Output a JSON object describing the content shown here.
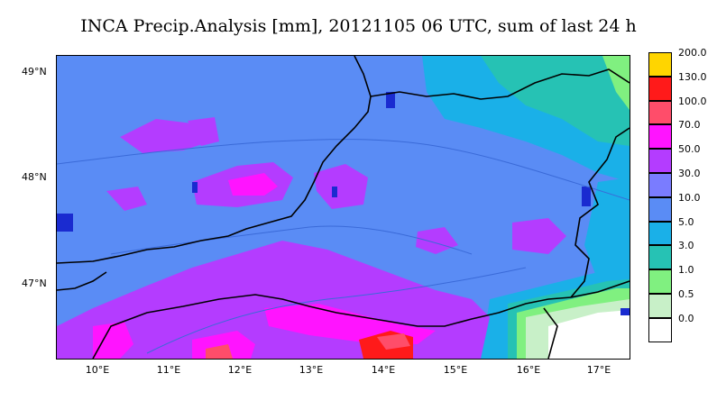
{
  "title": "INCA Precip.Analysis [mm], 20121105 06 UTC, sum of last 24 h",
  "latitude_labels": [
    "49°N",
    "48°N",
    "47°N"
  ],
  "longitude_labels": [
    "10°E",
    "11°E",
    "12°E",
    "13°E",
    "14°E",
    "15°E",
    "16°E",
    "17°E"
  ],
  "legend": {
    "levels": [
      {
        "label": "200.0",
        "color": "#ffd500"
      },
      {
        "label": "130.0",
        "color": "#ff1a1a"
      },
      {
        "label": "100.0",
        "color": "#ff4d6a"
      },
      {
        "label": "70.0",
        "color": "#ff14ff"
      },
      {
        "label": "50.0",
        "color": "#b43cff"
      },
      {
        "label": "30.0",
        "color": "#7a7cff"
      },
      {
        "label": "10.0",
        "color": "#5a8cf5"
      },
      {
        "label": "5.0",
        "color": "#1ab0e8"
      },
      {
        "label": "3.0",
        "color": "#26c2b4"
      },
      {
        "label": "1.0",
        "color": "#80f080"
      },
      {
        "label": "0.5",
        "color": "#c8f0c8"
      },
      {
        "label": "0.0",
        "color": "#ffffff"
      }
    ]
  }
}
